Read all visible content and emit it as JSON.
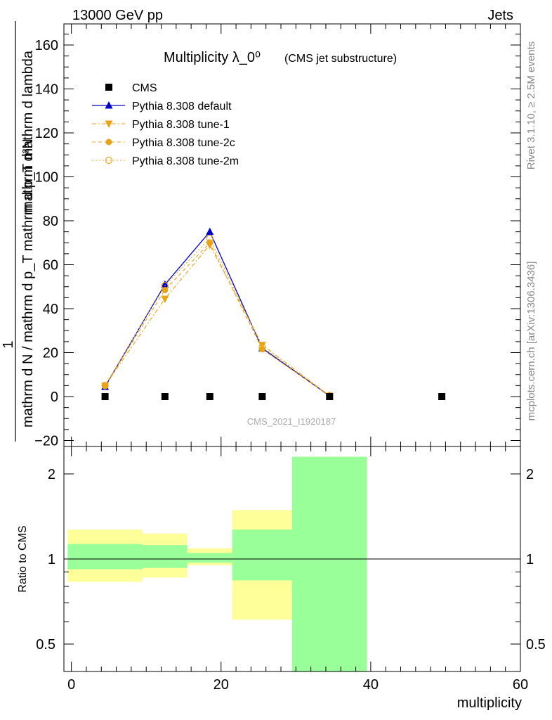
{
  "header": {
    "left": "13000 GeV pp",
    "right": "Jets"
  },
  "side_labels": {
    "rivet": "Rivet 3.1.10, ≥ 2.5M events",
    "mcplots": "mcplots.cern.ch [arXiv:1306.3436]"
  },
  "colors": {
    "cms": "#000000",
    "default": "#0000cc",
    "tunes": "#e8a317",
    "band_inner": "#99ff99",
    "band_outer": "#ffff99"
  },
  "chart_data": [
    {
      "type": "line",
      "panel": "main",
      "title": "Multiplicity λ_0⁰",
      "subtitle": "(CMS jet substructure)",
      "watermark": "CMS_2021_I1920187",
      "ylabel_parts": {
        "numerator": "1",
        "denominator": "mathrm d N / mathrm d p_T mathrm d p_T mathrm d lambda",
        "top": "mathrm d²N"
      },
      "ylim": [
        -20,
        170
      ],
      "yticks": [
        -20,
        0,
        20,
        40,
        60,
        80,
        100,
        120,
        140,
        160
      ],
      "xlim": [
        -1,
        60
      ],
      "legend_position": "top-left",
      "series": [
        {
          "name": "CMS",
          "marker": "square",
          "line": "none",
          "x": [
            4.5,
            12.5,
            18.5,
            25.5,
            34.5,
            49.5
          ],
          "y": [
            0,
            0,
            0,
            0,
            0,
            0
          ]
        },
        {
          "name": "Pythia 8.308 default",
          "marker": "triangle-up",
          "line": "solid",
          "x": [
            4.5,
            12.5,
            18.5,
            25.5,
            34.5
          ],
          "y": [
            4.5,
            51,
            75,
            22,
            0.3
          ]
        },
        {
          "name": "Pythia 8.308 tune-1",
          "marker": "triangle-down",
          "line": "dashdot",
          "x": [
            4.5,
            12.5,
            18.5,
            25.5,
            34.5
          ],
          "y": [
            5,
            44.5,
            69,
            23.5,
            0.3
          ]
        },
        {
          "name": "Pythia 8.308 tune-2c",
          "marker": "circle-filled",
          "line": "dashed",
          "x": [
            4.5,
            12.5,
            18.5,
            25.5,
            34.5
          ],
          "y": [
            5,
            48.5,
            70,
            21.5,
            0.4
          ]
        },
        {
          "name": "Pythia 8.308 tune-2m",
          "marker": "circle-open",
          "line": "dotted",
          "x": [
            4.5,
            12.5,
            18.5,
            25.5,
            34.5
          ],
          "y": [
            5,
            50.5,
            72,
            22.5,
            0.5
          ]
        }
      ]
    },
    {
      "type": "area",
      "panel": "ratio",
      "ylabel": "Ratio to CMS",
      "xlabel": "multiplicity",
      "ylim": [
        0.35,
        2.3
      ],
      "yscale": "log",
      "yticks": [
        0.5,
        1,
        2
      ],
      "xlim": [
        -1,
        60
      ],
      "xticks": [
        0,
        20,
        40,
        60
      ],
      "reference_line": 1,
      "bands": [
        {
          "x0": -0.5,
          "x1": 9.5,
          "inner_lo": 0.92,
          "inner_hi": 1.13,
          "outer_lo": 0.83,
          "outer_hi": 1.27
        },
        {
          "x0": 9.5,
          "x1": 15.5,
          "inner_lo": 0.93,
          "inner_hi": 1.12,
          "outer_lo": 0.86,
          "outer_hi": 1.23
        },
        {
          "x0": 15.5,
          "x1": 21.5,
          "inner_lo": 0.97,
          "inner_hi": 1.05,
          "outer_lo": 0.95,
          "outer_hi": 1.09
        },
        {
          "x0": 21.5,
          "x1": 29.5,
          "inner_lo": 0.84,
          "inner_hi": 1.27,
          "outer_lo": 0.61,
          "outer_hi": 1.49
        },
        {
          "x0": 29.5,
          "x1": 39.5,
          "inner_lo": 0.35,
          "inner_hi": 2.3,
          "outer_lo": 0.35,
          "outer_hi": 2.3
        }
      ]
    }
  ]
}
